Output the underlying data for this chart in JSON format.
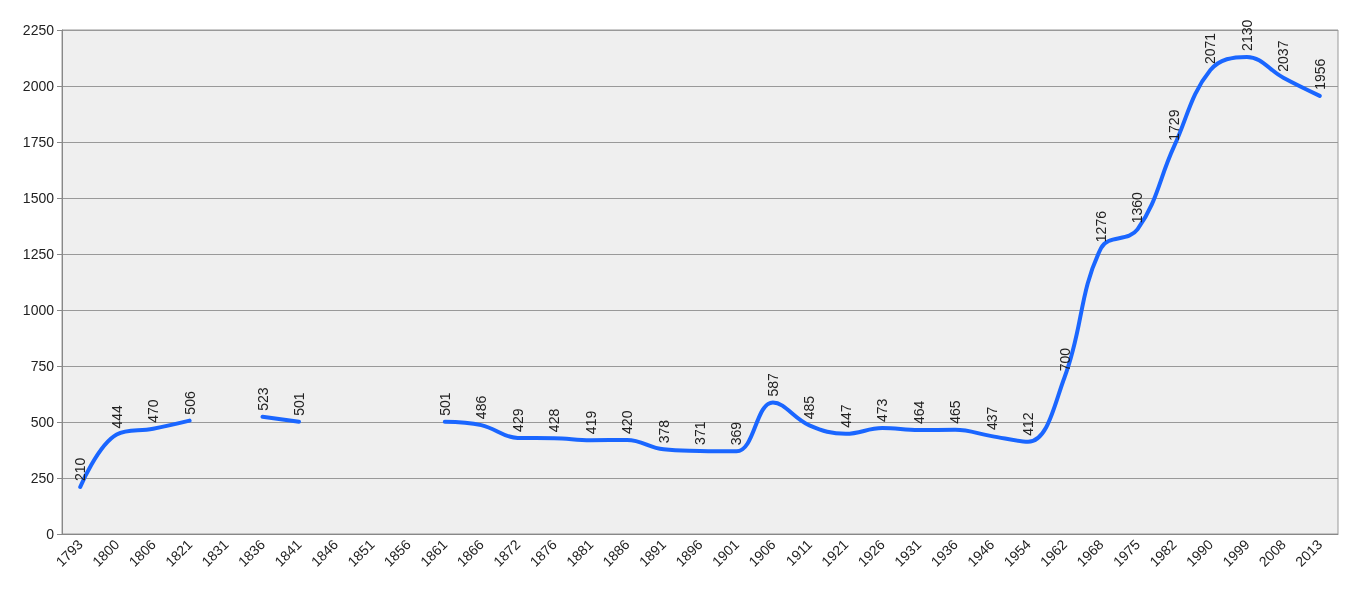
{
  "chart_data": {
    "type": "line",
    "categories": [
      "1793",
      "1800",
      "1806",
      "1821",
      "1831",
      "1836",
      "1841",
      "1846",
      "1851",
      "1856",
      "1861",
      "1866",
      "1872",
      "1876",
      "1881",
      "1886",
      "1891",
      "1896",
      "1901",
      "1906",
      "1911",
      "1921",
      "1926",
      "1931",
      "1936",
      "1946",
      "1954",
      "1962",
      "1968",
      "1975",
      "1982",
      "1990",
      "1999",
      "2008",
      "2013"
    ],
    "series": [
      {
        "color": "#1a66ff",
        "values": [
          210,
          444,
          470,
          506,
          null,
          523,
          501,
          null,
          null,
          null,
          501,
          486,
          429,
          428,
          419,
          420,
          378,
          371,
          369,
          587,
          485,
          447,
          473,
          464,
          465,
          437,
          412,
          700,
          1276,
          1360,
          1729,
          2071,
          2130,
          2037,
          1956
        ]
      }
    ],
    "ylim": [
      0,
      2250
    ],
    "yticks": [
      0,
      250,
      500,
      750,
      1000,
      1250,
      1500,
      1750,
      2000,
      2250
    ],
    "grid": "y",
    "marker": "none",
    "line_style": "solid",
    "data_labels": true
  }
}
